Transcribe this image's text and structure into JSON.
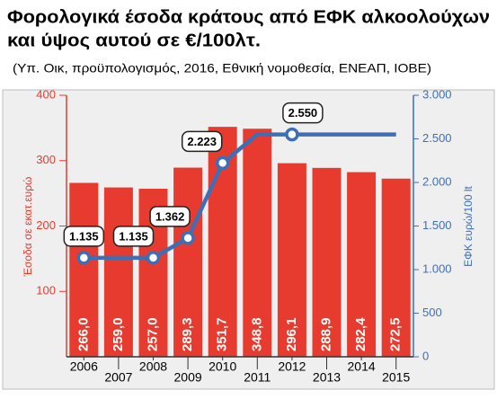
{
  "chart_data": {
    "type": "bar_line",
    "title": [
      "Φορολογικά έσοδα κράτους από ΕΦΚ αλκοολούχων",
      "και ύψος αυτού σε €/100λτ."
    ],
    "subtitle": "(Υπ. Οικ, προϋπολογισμός, 2016, Εθνική νομοθεσία, ΕΝΕΑΠ, ΙΟΒΕ)",
    "y_label": "Έσοδα σε εκατ.ευρώ",
    "y2_label": "ΕΦΚ ευρώ/100 lt",
    "categories": [
      "2006",
      "2007",
      "2008",
      "2009",
      "2010",
      "2011",
      "2012",
      "2013",
      "2014",
      "2015"
    ],
    "series": [
      {
        "type": "bar",
        "color": "#e63b2e",
        "values": [
          266.0,
          259.0,
          257.0,
          289.3,
          351.7,
          348.8,
          296.1,
          288.9,
          282.4,
          272.5
        ],
        "value_labels": [
          "266,0",
          "259,0",
          "257,0",
          "289,3",
          "351,7",
          "348,8",
          "296,1",
          "288,9",
          "282,4",
          "272,5"
        ]
      },
      {
        "type": "line",
        "color": "#3d6fb6",
        "axis": "y2",
        "values": [
          1135,
          1135,
          1135,
          1362,
          2223,
          2550,
          2550,
          2550,
          2550,
          2550
        ],
        "value_labels": [
          "1.135",
          null,
          "1.135",
          "1.362",
          "2.223",
          null,
          "2.550",
          null,
          null,
          null
        ]
      }
    ],
    "ylim": [
      0,
      400
    ],
    "yticks": [
      100,
      200,
      300,
      400
    ],
    "y2lim": [
      0,
      3000
    ],
    "y2ticks": [
      0,
      500,
      {
        "value": 1000,
        "label": "1.000"
      },
      {
        "value": 1500,
        "label": "1.500"
      },
      {
        "value": 2000,
        "label": "2.000"
      },
      {
        "value": 2500,
        "label": "2.500"
      },
      {
        "value": 3000,
        "label": "3.000"
      }
    ]
  }
}
